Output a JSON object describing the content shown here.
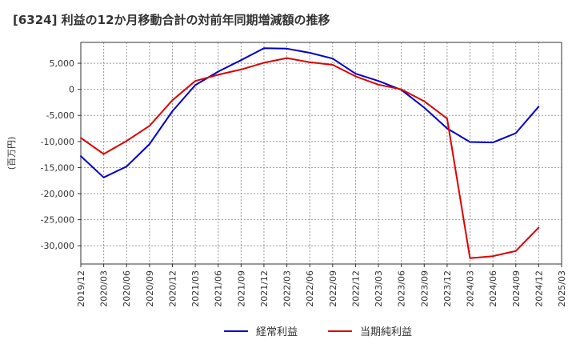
{
  "chart_data": {
    "type": "line",
    "title": "[6324]  利益の12か月移動合計の対前年同期増減額の推移",
    "ylabel": "(百万円)",
    "xlabel": "",
    "ylim": [
      -33500,
      9000
    ],
    "yticks": [
      5000,
      0,
      -5000,
      -10000,
      -15000,
      -20000,
      -25000,
      -30000
    ],
    "ytick_labels": [
      "5,000",
      "0",
      "-5,000",
      "-10,000",
      "-15,000",
      "-20,000",
      "-25,000",
      "-30,000"
    ],
    "x": [
      "2019/12",
      "2020/03",
      "2020/06",
      "2020/09",
      "2020/12",
      "2021/03",
      "2021/06",
      "2021/09",
      "2021/12",
      "2022/03",
      "2022/06",
      "2022/09",
      "2022/12",
      "2023/03",
      "2023/06",
      "2023/09",
      "2023/12",
      "2024/03",
      "2024/06",
      "2024/09",
      "2024/12",
      "2025/03"
    ],
    "grid": true,
    "legend_position": "bottom-center",
    "series": [
      {
        "name": "経常利益",
        "color": "#0000cc",
        "values": [
          -12800,
          -16900,
          -14800,
          -10500,
          -4200,
          800,
          3400,
          5600,
          7900,
          7800,
          7000,
          5900,
          3000,
          1600,
          -100,
          -3500,
          -7500,
          -10100,
          -10200,
          -8400,
          -3300,
          null
        ]
      },
      {
        "name": "当期純利益",
        "color": "#dd0000",
        "values": [
          -9300,
          -12400,
          -9900,
          -7000,
          -2100,
          1600,
          2800,
          3800,
          5100,
          6000,
          5200,
          4700,
          2500,
          900,
          0,
          -2300,
          -5600,
          -32400,
          -32000,
          -31000,
          -26500,
          null
        ]
      }
    ]
  }
}
